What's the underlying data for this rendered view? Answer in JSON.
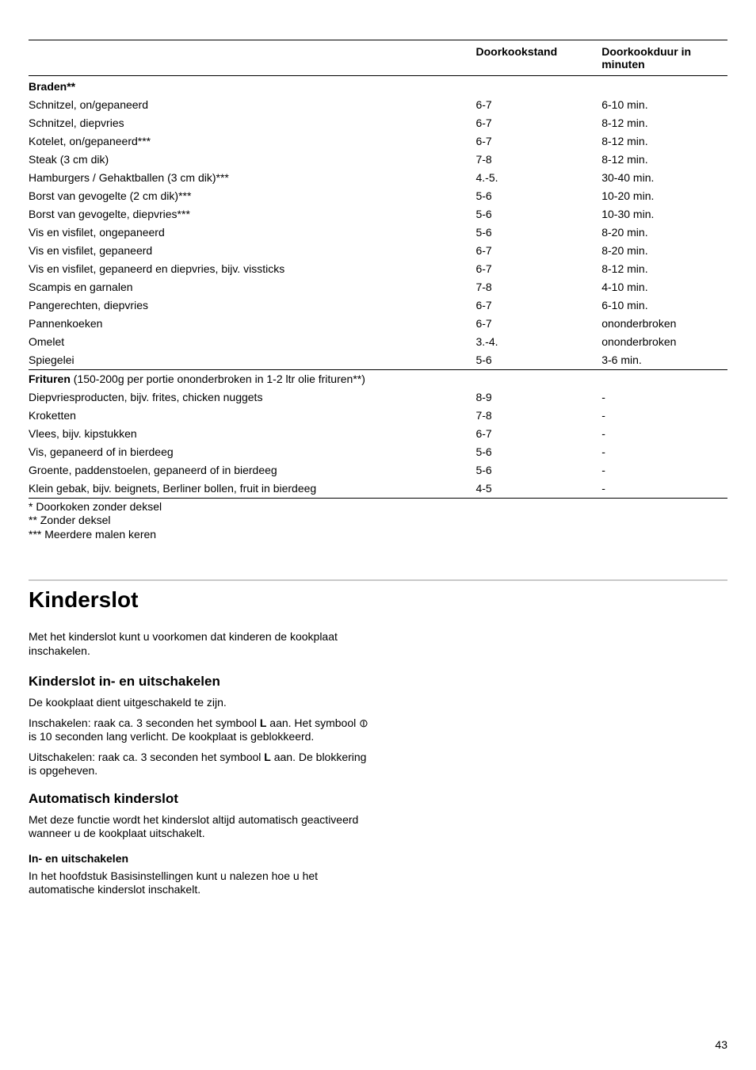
{
  "table": {
    "headers": {
      "col1": "",
      "col2": "Doorkookstand",
      "col3": "Doorkookduur in minuten"
    },
    "section1": {
      "title": "Braden**",
      "rows": [
        {
          "name": "Schnitzel, on/gepaneerd",
          "stand": "6-7",
          "duur": "6-10 min."
        },
        {
          "name": "Schnitzel, diepvries",
          "stand": "6-7",
          "duur": "8-12 min."
        },
        {
          "name": "Kotelet, on/gepaneerd***",
          "stand": "6-7",
          "duur": "8-12 min."
        },
        {
          "name": "Steak (3 cm dik)",
          "stand": "7-8",
          "duur": "8-12 min."
        },
        {
          "name": "Hamburgers / Gehaktballen (3 cm dik)***",
          "stand": "4.-5.",
          "duur": "30-40 min."
        },
        {
          "name": "Borst van gevogelte (2 cm dik)***",
          "stand": "5-6",
          "duur": "10-20 min."
        },
        {
          "name": "Borst van gevogelte, diepvries***",
          "stand": "5-6",
          "duur": "10-30 min."
        },
        {
          "name": "Vis en visfilet, ongepaneerd",
          "stand": "5-6",
          "duur": "8-20 min."
        },
        {
          "name": "Vis en visfilet, gepaneerd",
          "stand": "6-7",
          "duur": "8-20 min."
        },
        {
          "name": "Vis en visfilet, gepaneerd en diepvries, bijv. vissticks",
          "stand": "6-7",
          "duur": "8-12 min."
        },
        {
          "name": "Scampis en garnalen",
          "stand": "7-8",
          "duur": "4-10 min."
        },
        {
          "name": "Pangerechten, diepvries",
          "stand": "6-7",
          "duur": "6-10 min."
        },
        {
          "name": "Pannenkoeken",
          "stand": "6-7",
          "duur": "ononderbroken"
        },
        {
          "name": "Omelet",
          "stand": "3.-4.",
          "duur": "ononderbroken"
        },
        {
          "name": "Spiegelei",
          "stand": "5-6",
          "duur": "3-6 min."
        }
      ]
    },
    "section2": {
      "title_bold": "Frituren",
      "title_rest": " (150-200g per portie ononderbroken in 1-2 ltr olie frituren**)",
      "rows": [
        {
          "name": "Diepvriesproducten, bijv. frites, chicken nuggets",
          "stand": "8-9",
          "duur": "-"
        },
        {
          "name": "Kroketten",
          "stand": "7-8",
          "duur": "-"
        },
        {
          "name": "Vlees, bijv. kipstukken",
          "stand": "6-7",
          "duur": "-"
        },
        {
          "name": "Vis, gepaneerd of in bierdeeg",
          "stand": "5-6",
          "duur": "-"
        },
        {
          "name": "Groente, paddenstoelen, gepaneerd of in bierdeeg",
          "stand": "5-6",
          "duur": "-"
        },
        {
          "name": "Klein gebak, bijv. beignets, Berliner bollen, fruit in bierdeeg",
          "stand": "4-5",
          "duur": "-"
        }
      ]
    }
  },
  "footnotes": {
    "f1": "* Doorkoken zonder deksel",
    "f2": "** Zonder deksel",
    "f3": "*** Meerdere malen keren"
  },
  "kinderslot": {
    "heading": "Kinderslot",
    "intro": "Met het kinderslot kunt u voorkomen dat kinderen de kookplaat inschakelen.",
    "sub1_heading": "Kinderslot in- en uitschakelen",
    "sub1_p1": "De kookplaat dient uitgeschakeld te zijn.",
    "sub1_p2a": "Inschakelen: raak ca. 3 seconden het symbool ",
    "sub1_p2b": " aan. Het symbool ",
    "sub1_p2c": " is 10 seconden lang verlicht. De kookplaat is geblokkeerd.",
    "sub1_p3a": "Uitschakelen: raak ca. 3 seconden het symbool ",
    "sub1_p3b": " aan. De blokkering is opgeheven.",
    "sub2_heading": "Automatisch kinderslot",
    "sub2_p1": "Met deze functie wordt het kinderslot altijd automatisch geactiveerd wanneer u de kookplaat uitschakelt.",
    "sub3_heading": "In- en uitschakelen",
    "sub3_p1": "In het hoofdstuk Basisinstellingen kunt u nalezen hoe u het automatische kinderslot inschakelt."
  },
  "symbols": {
    "L": "L",
    "lock": "⊖"
  },
  "pagenum": "43"
}
